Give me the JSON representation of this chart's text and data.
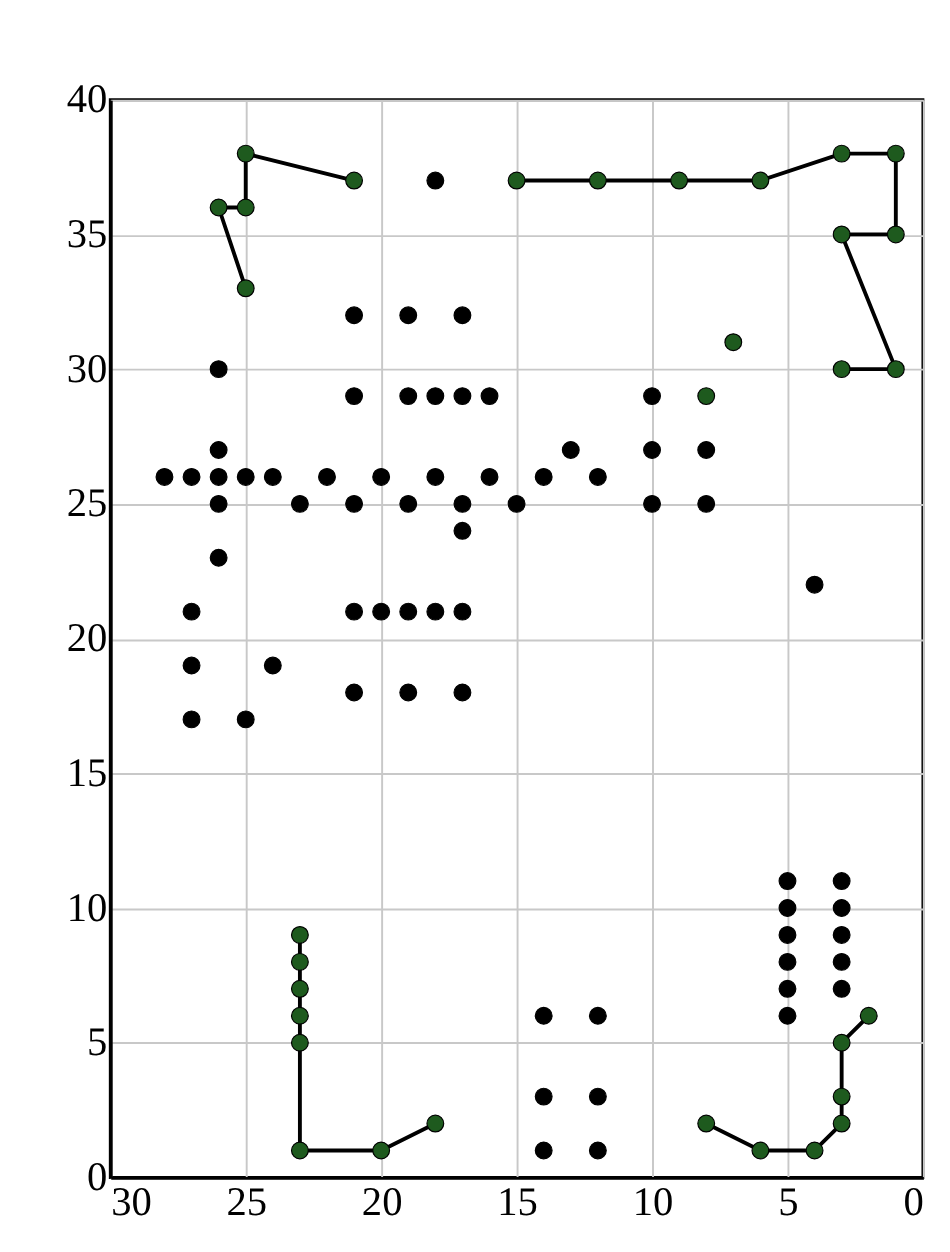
{
  "chart_data": {
    "type": "scatter",
    "xlim": [
      30,
      0
    ],
    "ylim": [
      0,
      40
    ],
    "xticks": [
      30,
      25,
      20,
      15,
      10,
      5,
      0
    ],
    "yticks": [
      0,
      5,
      10,
      15,
      20,
      25,
      30,
      35,
      40
    ],
    "grid": true,
    "marker": "circle",
    "series": [
      {
        "color": "#000000",
        "x": [
          18,
          21,
          19,
          17,
          26,
          21,
          19,
          18,
          17,
          16,
          26,
          28,
          27,
          26,
          25,
          24,
          22,
          20,
          18,
          16,
          26,
          23,
          21,
          19,
          17,
          15,
          17,
          26,
          27,
          21,
          20,
          19,
          18,
          17,
          27,
          24,
          21,
          19,
          17,
          27,
          25,
          10,
          13,
          10,
          8,
          14,
          12,
          10,
          8,
          4,
          5,
          5,
          5,
          5,
          5,
          5,
          3,
          3,
          3,
          3,
          3,
          14,
          12,
          14,
          12,
          14,
          12
        ],
        "values": [
          37,
          32,
          32,
          32,
          30,
          29,
          29,
          29,
          29,
          29,
          27,
          26,
          26,
          26,
          26,
          26,
          26,
          26,
          26,
          26,
          25,
          25,
          25,
          25,
          25,
          25,
          24,
          23,
          21,
          21,
          21,
          21,
          21,
          21,
          19,
          19,
          18,
          18,
          18,
          17,
          17,
          29,
          27,
          27,
          27,
          26,
          26,
          25,
          25,
          22,
          11,
          10,
          9,
          8,
          7,
          6,
          11,
          10,
          9,
          8,
          7,
          6,
          6,
          3,
          3,
          1,
          1
        ]
      },
      {
        "type": "line",
        "color": "#1e5a1e",
        "x": [
          21,
          25,
          25,
          26,
          25
        ],
        "values": [
          37,
          38,
          36,
          36,
          33
        ]
      },
      {
        "type": "line",
        "color": "#1e5a1e",
        "x": [
          15,
          12,
          9,
          6,
          3,
          1,
          1,
          3,
          1,
          3
        ],
        "values": [
          37,
          37,
          37,
          37,
          38,
          38,
          35,
          35,
          30,
          30
        ]
      },
      {
        "color": "#1e5a1e",
        "x": [
          7,
          8
        ],
        "values": [
          31,
          29
        ]
      },
      {
        "type": "line",
        "color": "#1e5a1e",
        "x": [
          23,
          23,
          23,
          23,
          23,
          23,
          20,
          18
        ],
        "values": [
          9,
          8,
          7,
          6,
          5,
          1,
          1,
          2
        ]
      },
      {
        "type": "line",
        "color": "#1e5a1e",
        "x": [
          8,
          6,
          4,
          3,
          3,
          3,
          2
        ],
        "values": [
          2,
          1,
          1,
          2,
          3,
          5,
          6
        ]
      }
    ]
  }
}
